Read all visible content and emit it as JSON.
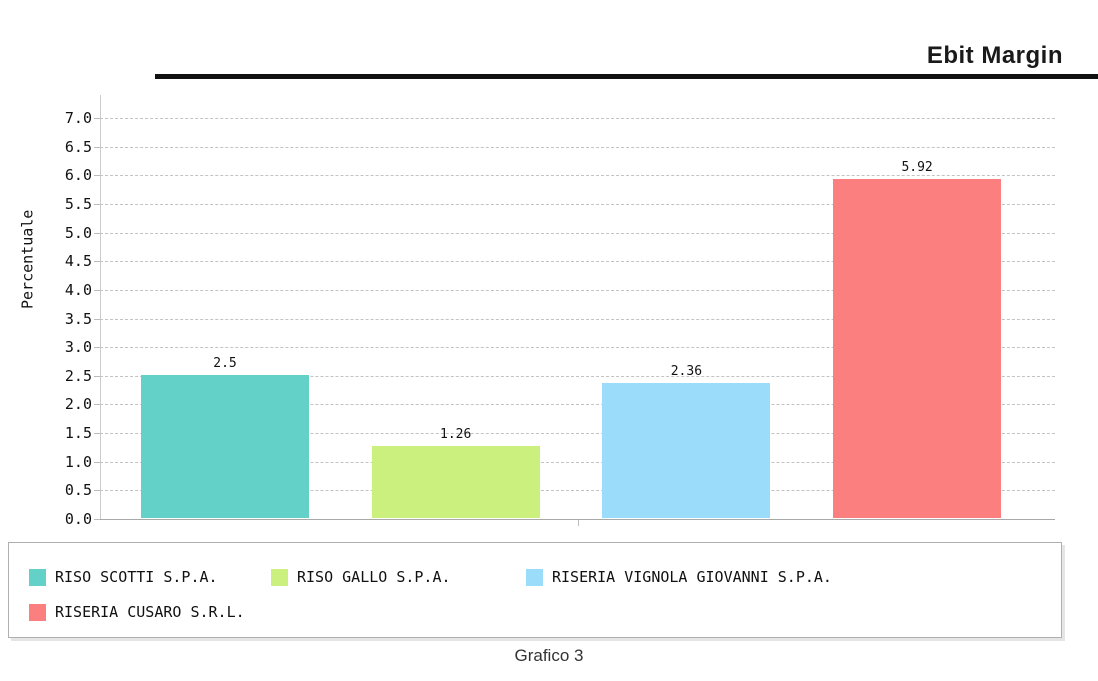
{
  "header": {
    "title": "Ebit Margin"
  },
  "caption": "Grafico 3",
  "chart_data": {
    "type": "bar",
    "title": "Ebit Margin",
    "categories": [
      "RISO SCOTTI S.P.A.",
      "RISO GALLO S.P.A.",
      "RISERIA VIGNOLA GIOVANNI S.P.A.",
      "RISERIA CUSARO S.R.L."
    ],
    "values": [
      2.5,
      1.26,
      2.36,
      5.92
    ],
    "value_labels": [
      "2.5",
      "1.26",
      "2.36",
      "5.92"
    ],
    "bar_colors": [
      "#63d1c8",
      "#cbf07e",
      "#9bdcfb",
      "#fb7f7f"
    ],
    "xlabel": "",
    "ylabel": "Percentuale",
    "ylim": [
      0,
      7
    ],
    "ytick_labels": [
      "0.0",
      "0.5",
      "1.0",
      "1.5",
      "2.0",
      "2.5",
      "3.0",
      "3.5",
      "4.0",
      "4.5",
      "5.0",
      "5.5",
      "6.0",
      "6.5",
      "7.0"
    ],
    "grid": "horizontal-dashed",
    "legend_position": "bottom"
  }
}
